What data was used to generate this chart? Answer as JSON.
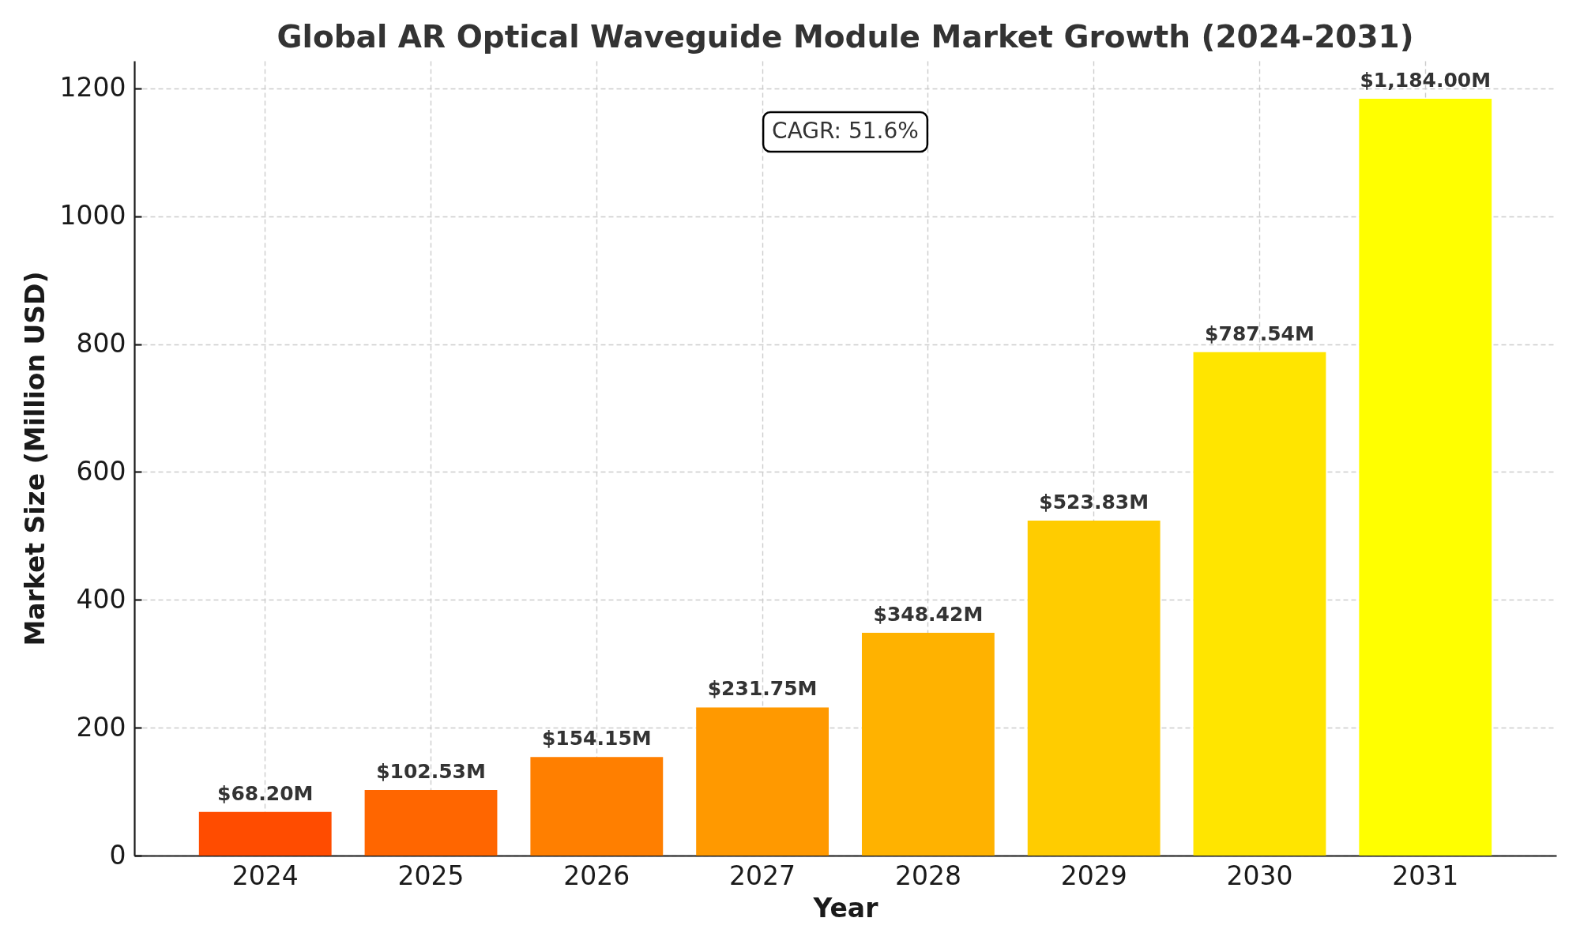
{
  "chart_data": {
    "type": "bar",
    "title": "Global AR Optical Waveguide Module Market Growth (2024-2031)",
    "xlabel": "Year",
    "ylabel": "Market Size (Million USD)",
    "categories": [
      "2024",
      "2025",
      "2026",
      "2027",
      "2028",
      "2029",
      "2030",
      "2031"
    ],
    "values": [
      68.2,
      102.53,
      154.15,
      231.75,
      348.42,
      523.83,
      787.54,
      1184
    ],
    "colors": [
      "#ff4c00",
      "#ff6600",
      "#ff7f00",
      "#ff9900",
      "#ffb200",
      "#ffcc00",
      "#ffe500",
      "#ffff00"
    ],
    "value_labels": [
      "$68.20M",
      "$102.53M",
      "$154.15M",
      "$231.75M",
      "$348.42M",
      "$523.83M",
      "$787.54M",
      "$1,184.00M"
    ],
    "ylim": [
      0,
      1243.2
    ],
    "yticks": [
      0,
      200,
      400,
      600,
      800,
      1000,
      1200
    ],
    "grid": true,
    "annotations": [
      "CAGR: 51.6%"
    ]
  }
}
